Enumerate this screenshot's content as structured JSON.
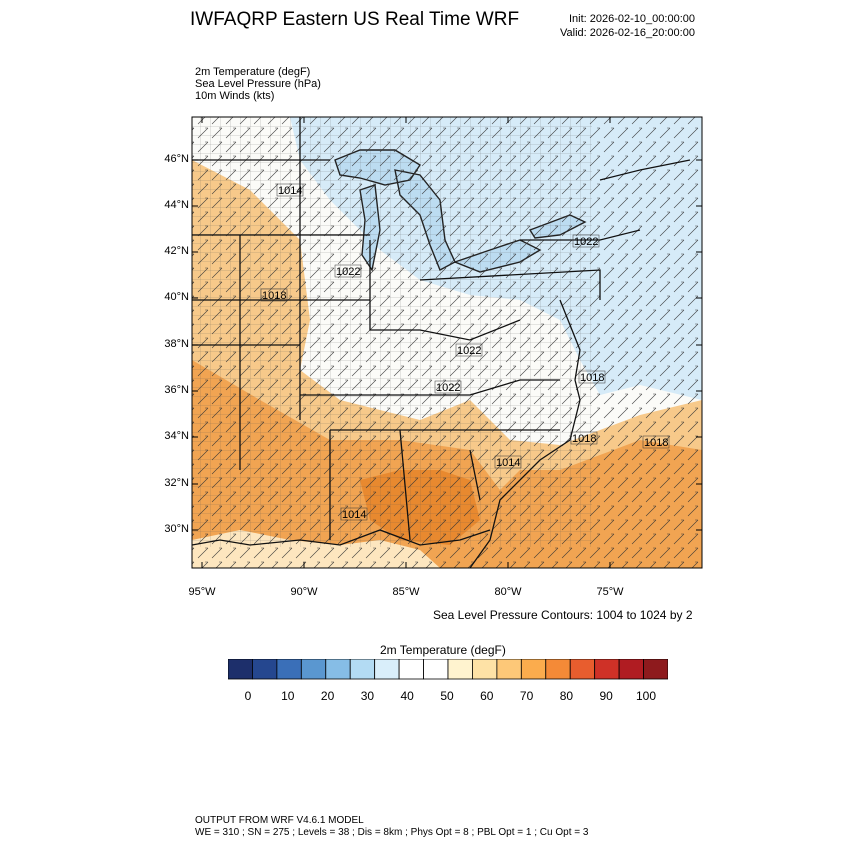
{
  "header": {
    "title": "IWFAQRP Eastern US Real Time WRF",
    "init": "Init: 2026-02-10_00:00:00",
    "valid": "Valid: 2026-02-16_20:00:00"
  },
  "fields": [
    "2m Temperature   (degF)",
    "Sea Level Pressure   (hPa)",
    "10m Winds   (kts)"
  ],
  "map": {
    "lat_labels": [
      "46°N",
      "44°N",
      "42°N",
      "40°N",
      "38°N",
      "36°N",
      "34°N",
      "32°N",
      "30°N"
    ],
    "lon_labels": [
      "95°W",
      "90°W",
      "85°W",
      "80°W",
      "75°W"
    ],
    "pressure_labels": [
      "1014",
      "1022",
      "1018",
      "1022",
      "1022",
      "1018",
      "1022",
      "1018",
      "1018",
      "1014",
      "1014"
    ],
    "contour_note": "Sea Level Pressure Contours: 1004 to 1024 by 2",
    "colors": {
      "water_cold": "#cfe6f5",
      "land_mild": "#ffffff",
      "land_warm": "#f5b55f",
      "land_hot": "#e98a3a"
    }
  },
  "colorbar": {
    "title": "2m Temperature  (degF)",
    "ticks": [
      "0",
      "10",
      "20",
      "30",
      "40",
      "50",
      "60",
      "70",
      "80",
      "90",
      "100"
    ],
    "colors": [
      "#1d2f6b",
      "#25478f",
      "#3a6fb8",
      "#5a97d0",
      "#86bde6",
      "#b3dbf3",
      "#d9eefa",
      "#ffffff",
      "#ffffff",
      "#fff3cf",
      "#fee2a6",
      "#fdc878",
      "#fbac4d",
      "#f48a37",
      "#e85d2e",
      "#cf3127",
      "#b01c22",
      "#8e1a1d"
    ]
  },
  "footer": {
    "line1": "OUTPUT FROM WRF V4.6.1 MODEL",
    "line2": "WE = 310 ; SN = 275 ; Levels = 38 ; Dis = 8km ; Phys Opt = 8 ; PBL Opt = 1 ; Cu Opt = 3"
  }
}
